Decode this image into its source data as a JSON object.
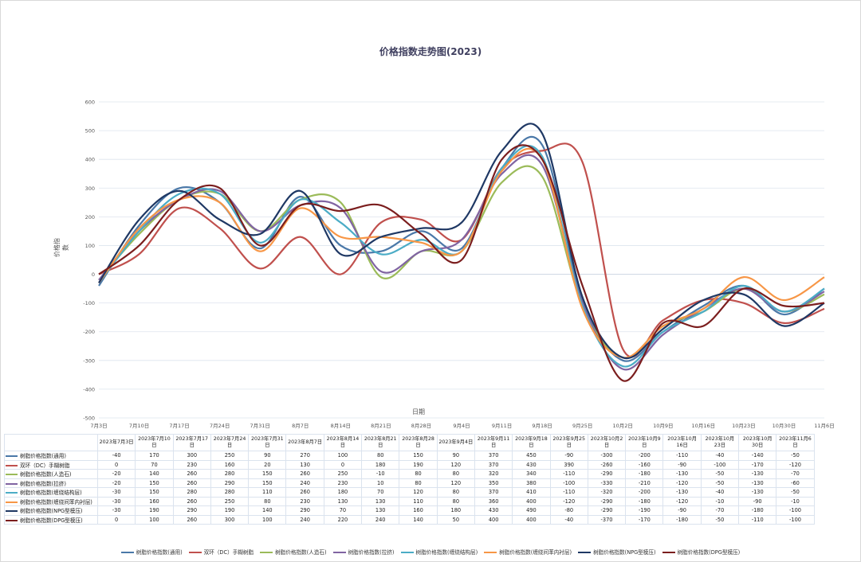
{
  "chart_data": {
    "type": "line",
    "title": "价格指数走势图(2023)",
    "xlabel": "日期",
    "ylabel": "价格指数",
    "ylim": [
      -500,
      600
    ],
    "yticks": [
      -500,
      -400,
      -300,
      -200,
      -100,
      0,
      100,
      200,
      300,
      400,
      500,
      600
    ],
    "grid": true,
    "legend_position": "bottom",
    "x_axis_labels": [
      "7月3日",
      "7月10日",
      "7月17日",
      "7月24日",
      "7月31日",
      "8月7日",
      "8月14日",
      "8月21日",
      "8月28日",
      "9月4日",
      "9月11日",
      "9月18日",
      "9月25日",
      "10月2日",
      "10月9日",
      "10月16日",
      "10月23日",
      "10月30日",
      "11月6日"
    ],
    "categories": [
      "2023年7月3日",
      "2023年7月10日",
      "2023年7月17日",
      "2023年7月24日",
      "2023年7月31日",
      "2023年8月7日",
      "2023年8月14日",
      "2023年8月21日",
      "2023年8月28日",
      "2023年9月4日",
      "2023年9月11日",
      "2023年9月18日",
      "2023年9月25日",
      "2023年10月2日",
      "2023年10月9日",
      "2023年10月16日",
      "2023年10月23日",
      "2023年10月30日",
      "2023年11月6日"
    ],
    "series": [
      {
        "name": "树脂价格指数(通用)",
        "color": "#4a78a8",
        "values": [
          -40,
          170,
          300,
          250,
          90,
          270,
          100,
          80,
          150,
          90,
          370,
          450,
          -90,
          -300,
          -200,
          -110,
          -40,
          -140,
          -50
        ]
      },
      {
        "name": "双环（DC）手糊树脂",
        "color": "#c0504d",
        "values": [
          0,
          70,
          230,
          160,
          20,
          130,
          0,
          180,
          190,
          120,
          370,
          430,
          390,
          -260,
          -160,
          -90,
          -100,
          -170,
          -120
        ]
      },
      {
        "name": "树脂价格指数(人造石)",
        "color": "#9bbb59",
        "values": [
          -20,
          140,
          260,
          280,
          150,
          260,
          250,
          -10,
          80,
          80,
          320,
          340,
          -110,
          -290,
          -180,
          -130,
          -50,
          -130,
          -70
        ]
      },
      {
        "name": "树脂价格指数(拉挤)",
        "color": "#8064a2",
        "values": [
          -20,
          150,
          260,
          290,
          150,
          240,
          230,
          10,
          80,
          120,
          350,
          380,
          -100,
          -330,
          -210,
          -120,
          -50,
          -130,
          -60
        ]
      },
      {
        "name": "树脂价格指数(缠绕结构层)",
        "color": "#4bacc6",
        "values": [
          -30,
          150,
          280,
          280,
          110,
          260,
          180,
          70,
          120,
          80,
          370,
          410,
          -110,
          -320,
          -200,
          -130,
          -40,
          -130,
          -50
        ]
      },
      {
        "name": "树脂价格指数(缠绕间苯内衬层)",
        "color": "#f79646",
        "values": [
          -30,
          160,
          260,
          250,
          80,
          230,
          130,
          130,
          110,
          80,
          360,
          400,
          -120,
          -290,
          -180,
          -120,
          -10,
          -90,
          -10
        ]
      },
      {
        "name": "树脂价格指数(NPG型模压)",
        "color": "#1f3864",
        "values": [
          -30,
          190,
          290,
          190,
          140,
          290,
          70,
          130,
          160,
          180,
          430,
          490,
          -80,
          -290,
          -190,
          -90,
          -70,
          -180,
          -100
        ]
      },
      {
        "name": "树脂价格指数(DPG型模压)",
        "color": "#7b1e1e",
        "values": [
          0,
          100,
          260,
          300,
          100,
          240,
          220,
          240,
          140,
          50,
          400,
          400,
          -40,
          -370,
          -170,
          -180,
          -50,
          -110,
          -100
        ]
      }
    ]
  }
}
